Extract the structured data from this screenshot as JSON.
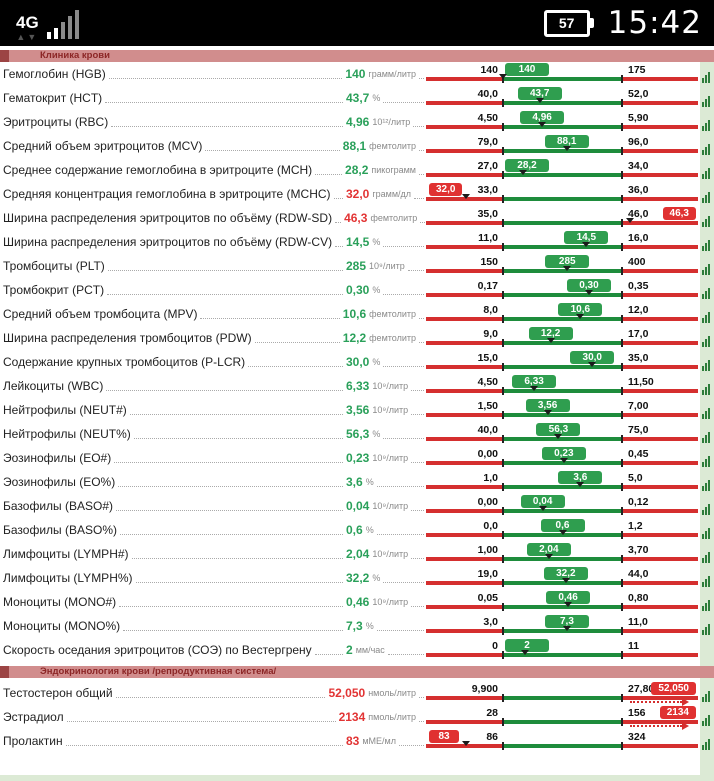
{
  "status_bar": {
    "network": "4G",
    "battery_percent": "57",
    "time": "15:42"
  },
  "sections": [
    {
      "title": "Клиника крови",
      "rows": [
        {
          "label": "Гемоглобин (HGB)",
          "value": "140",
          "unit": "грамм/литр",
          "min": "140",
          "max": "175",
          "vnum": 140,
          "minnum": 140,
          "maxnum": 175,
          "status": "normal",
          "icon": true
        },
        {
          "label": "Гематокрит (HCT)",
          "value": "43,7",
          "unit": "%",
          "min": "40,0",
          "max": "52,0",
          "vnum": 43.7,
          "minnum": 40,
          "maxnum": 52,
          "status": "normal",
          "icon": true
        },
        {
          "label": "Эритроциты (RBC)",
          "value": "4,96",
          "unit": "10¹²/литр",
          "min": "4,50",
          "max": "5,90",
          "vnum": 4.96,
          "minnum": 4.5,
          "maxnum": 5.9,
          "status": "normal",
          "icon": true
        },
        {
          "label": "Средний объем эритроцитов (MCV)",
          "value": "88,1",
          "unit": "фемтолитр",
          "min": "79,0",
          "max": "96,0",
          "vnum": 88.1,
          "minnum": 79,
          "maxnum": 96,
          "status": "normal",
          "icon": true
        },
        {
          "label": "Среднее содержание гемоглобина в эритроците (MCH)",
          "value": "28,2",
          "unit": "пикограмм",
          "min": "27,0",
          "max": "34,0",
          "vnum": 28.2,
          "minnum": 27,
          "maxnum": 34,
          "status": "normal",
          "icon": true
        },
        {
          "label": "Средняя концентрация гемоглобина в эритроците (MCHC)",
          "value": "32,0",
          "unit": "грамм/дл",
          "min": "33,0",
          "max": "36,0",
          "vnum": 32,
          "minnum": 33,
          "maxnum": 36,
          "status": "low",
          "icon": true
        },
        {
          "label": "Ширина распределения эритроцитов по объёму (RDW-SD)",
          "value": "46,3",
          "unit": "фемтолитр",
          "min": "35,0",
          "max": "46,0",
          "vnum": 46.3,
          "minnum": 35,
          "maxnum": 46,
          "status": "high",
          "icon": true
        },
        {
          "label": "Ширина распределения эритроцитов по объёму (RDW-CV)",
          "value": "14,5",
          "unit": "%",
          "min": "11,0",
          "max": "16,0",
          "vnum": 14.5,
          "minnum": 11,
          "maxnum": 16,
          "status": "normal",
          "icon": true
        },
        {
          "label": "Тромбоциты (PLT)",
          "value": "285",
          "unit": "10⁹/литр",
          "min": "150",
          "max": "400",
          "vnum": 285,
          "minnum": 150,
          "maxnum": 400,
          "status": "normal",
          "icon": true
        },
        {
          "label": "Тромбокрит (PCT)",
          "value": "0,30",
          "unit": "%",
          "min": "0,17",
          "max": "0,35",
          "vnum": 0.3,
          "minnum": 0.17,
          "maxnum": 0.35,
          "status": "normal",
          "icon": true
        },
        {
          "label": "Средний объем тромбоцита (MPV)",
          "value": "10,6",
          "unit": "фемтолитр",
          "min": "8,0",
          "max": "12,0",
          "vnum": 10.6,
          "minnum": 8,
          "maxnum": 12,
          "status": "normal",
          "icon": true
        },
        {
          "label": "Ширина распределения тромбоцитов (PDW)",
          "value": "12,2",
          "unit": "фемтолитр",
          "min": "9,0",
          "max": "17,0",
          "vnum": 12.2,
          "minnum": 9,
          "maxnum": 17,
          "status": "normal",
          "icon": true
        },
        {
          "label": "Содержание крупных тромбоцитов (P-LCR)",
          "value": "30,0",
          "unit": "%",
          "min": "15,0",
          "max": "35,0",
          "vnum": 30,
          "minnum": 15,
          "maxnum": 35,
          "status": "normal",
          "icon": true
        },
        {
          "label": "Лейкоциты (WBC)",
          "value": "6,33",
          "unit": "10⁹/литр",
          "min": "4,50",
          "max": "11,50",
          "vnum": 6.33,
          "minnum": 4.5,
          "maxnum": 11.5,
          "status": "normal",
          "icon": true
        },
        {
          "label": "Нейтрофилы (NEUT#)",
          "value": "3,56",
          "unit": "10⁹/литр",
          "min": "1,50",
          "max": "7,00",
          "vnum": 3.56,
          "minnum": 1.5,
          "maxnum": 7,
          "status": "normal",
          "icon": true
        },
        {
          "label": "Нейтрофилы (NEUT%)",
          "value": "56,3",
          "unit": "%",
          "min": "40,0",
          "max": "75,0",
          "vnum": 56.3,
          "minnum": 40,
          "maxnum": 75,
          "status": "normal",
          "icon": true
        },
        {
          "label": "Эозинофилы (EO#)",
          "value": "0,23",
          "unit": "10⁹/литр",
          "min": "0,00",
          "max": "0,45",
          "vnum": 0.23,
          "minnum": 0,
          "maxnum": 0.45,
          "status": "normal",
          "icon": true
        },
        {
          "label": "Эозинофилы (EO%)",
          "value": "3,6",
          "unit": "%",
          "min": "1,0",
          "max": "5,0",
          "vnum": 3.6,
          "minnum": 1,
          "maxnum": 5,
          "status": "normal",
          "icon": true
        },
        {
          "label": "Базофилы (BASO#)",
          "value": "0,04",
          "unit": "10⁹/литр",
          "min": "0,00",
          "max": "0,12",
          "vnum": 0.04,
          "minnum": 0,
          "maxnum": 0.12,
          "status": "normal",
          "icon": true
        },
        {
          "label": "Базофилы (BASO%)",
          "value": "0,6",
          "unit": "%",
          "min": "0,0",
          "max": "1,2",
          "vnum": 0.6,
          "minnum": 0,
          "maxnum": 1.2,
          "status": "normal",
          "icon": true
        },
        {
          "label": "Лимфоциты (LYMPH#)",
          "value": "2,04",
          "unit": "10⁹/литр",
          "min": "1,00",
          "max": "3,70",
          "vnum": 2.04,
          "minnum": 1,
          "maxnum": 3.7,
          "status": "normal",
          "icon": true
        },
        {
          "label": "Лимфоциты (LYMPH%)",
          "value": "32,2",
          "unit": "%",
          "min": "19,0",
          "max": "44,0",
          "vnum": 32.2,
          "minnum": 19,
          "maxnum": 44,
          "status": "normal",
          "icon": true
        },
        {
          "label": "Моноциты (MONO#)",
          "value": "0,46",
          "unit": "10⁹/литр",
          "min": "0,05",
          "max": "0,80",
          "vnum": 0.46,
          "minnum": 0.05,
          "maxnum": 0.8,
          "status": "normal",
          "icon": true
        },
        {
          "label": "Моноциты (MONO%)",
          "value": "7,3",
          "unit": "%",
          "min": "3,0",
          "max": "11,0",
          "vnum": 7.3,
          "minnum": 3,
          "maxnum": 11,
          "status": "normal",
          "icon": true
        },
        {
          "label": "Скорость оседания эритроцитов (СОЭ) по Вестергрену",
          "value": "2",
          "unit": "мм/час",
          "min": "0",
          "max": "11",
          "vnum": 2,
          "minnum": 0,
          "maxnum": 11,
          "status": "normal",
          "icon": false
        }
      ]
    },
    {
      "title": "Эндокринология крови /репродуктивная система/",
      "rows": [
        {
          "label": "Тестостерон общий",
          "value": "52,050",
          "unit": "нмоль/литр",
          "min": "9,900",
          "max": "27,800",
          "vnum": 52.05,
          "minnum": 9.9,
          "maxnum": 27.8,
          "status": "high_offscale",
          "icon": true
        },
        {
          "label": "Эстрадиол",
          "value": "2134",
          "unit": "пмоль/литр",
          "min": "28",
          "max": "156",
          "vnum": 2134,
          "minnum": 28,
          "maxnum": 156,
          "status": "high_offscale",
          "icon": true
        },
        {
          "label": "Пролактин",
          "value": "83",
          "unit": "мМЕ/мл",
          "min": "86",
          "max": "324",
          "vnum": 83,
          "minnum": 86,
          "maxnum": 324,
          "status": "low",
          "icon": true
        }
      ]
    }
  ]
}
